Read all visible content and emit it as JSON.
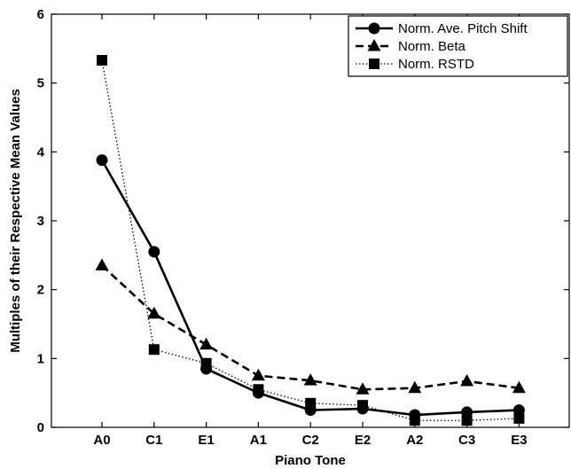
{
  "chart_data": {
    "type": "line",
    "title": "",
    "xlabel": "Piano Tone",
    "ylabel": "Multiples of their Respective Mean Values",
    "categories": [
      "A0",
      "C1",
      "E1",
      "A1",
      "C2",
      "E2",
      "A2",
      "C3",
      "E3"
    ],
    "ylim": [
      0,
      6
    ],
    "yticks": [
      0,
      1,
      2,
      3,
      4,
      5,
      6
    ],
    "grid": false,
    "legend_position": "top-right",
    "series": [
      {
        "name": "Norm. Ave. Pitch Shift",
        "values": [
          3.88,
          2.55,
          0.85,
          0.5,
          0.25,
          0.27,
          0.18,
          0.22,
          0.25
        ],
        "marker": "circle",
        "line_style": "solid",
        "color": "#000000"
      },
      {
        "name": "Norm. Beta",
        "values": [
          2.35,
          1.65,
          1.2,
          0.75,
          0.68,
          0.55,
          0.57,
          0.67,
          0.57
        ],
        "marker": "triangle",
        "line_style": "dashed",
        "color": "#000000"
      },
      {
        "name": "Norm. RSTD",
        "values": [
          5.33,
          1.13,
          0.93,
          0.55,
          0.35,
          0.32,
          0.1,
          0.1,
          0.13
        ],
        "marker": "square",
        "line_style": "dotted",
        "color": "#000000"
      }
    ]
  }
}
